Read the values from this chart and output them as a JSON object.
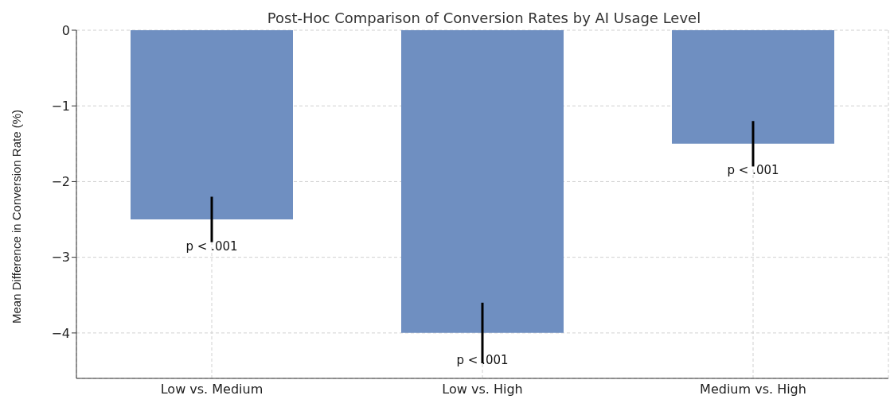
{
  "chart_data": {
    "type": "bar",
    "title": "Post-Hoc Comparison of Conversion Rates by AI Usage Level",
    "ylabel": "Mean Difference in Conversion Rate (%)",
    "categories": [
      "Low vs. Medium",
      "Low vs. High",
      "Medium vs. High"
    ],
    "values": [
      -2.5,
      -4,
      -1.5
    ],
    "errors": [
      0.3,
      0.4,
      0.3
    ],
    "color": "#6f8fc1",
    "ylim": [
      -4.6,
      0
    ],
    "yticks": [
      {
        "value": -4,
        "label": "−4"
      },
      {
        "value": -3,
        "label": "−3"
      },
      {
        "value": -2,
        "label": "−2"
      },
      {
        "value": -1,
        "label": "−1"
      },
      0
    ],
    "grid": true,
    "annotations": [
      {
        "text": "p < .001",
        "x": "Low vs. Medium",
        "y": -2.85
      },
      {
        "text": "p < .001",
        "x": "Low vs. High",
        "y": -4.35
      },
      {
        "text": "p < .001",
        "x": "Medium vs. High",
        "y": -1.85
      }
    ]
  }
}
